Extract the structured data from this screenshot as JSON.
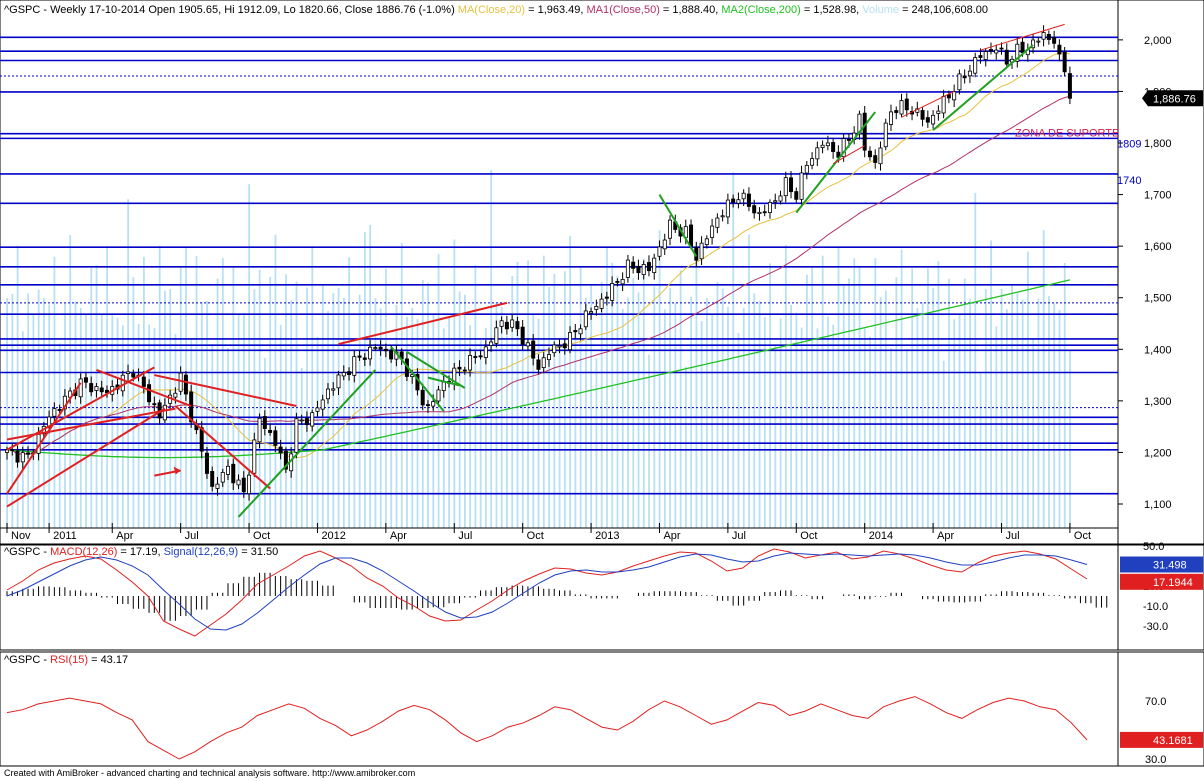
{
  "footer": "Created with AmiBroker - advanced charting and technical analysis software. http://www.amibroker.com",
  "chart_data": [
    {
      "type": "candlestick",
      "symbol": "^GSPC",
      "title_parts": [
        {
          "text": "^GSPC - Weekly 17-10-2014 Open 1905.65, Hi 1912.09, Lo 1820.66, Close 1886.76 (-1.0%) ",
          "color": "#000000"
        },
        {
          "text": "MA(Close,20)",
          "color": "#e8c040"
        },
        {
          "text": " = 1,963.49, ",
          "color": "#000000"
        },
        {
          "text": "MA1(Close,50)",
          "color": "#b0306a"
        },
        {
          "text": " = 1,888.40, ",
          "color": "#000000"
        },
        {
          "text": "MA2(Close,200)",
          "color": "#20c020"
        },
        {
          "text": " = 1,528.98, ",
          "color": "#000000"
        },
        {
          "text": "Volume",
          "color": "#b8e0f0"
        },
        {
          "text": " = 248,106,608.00",
          "color": "#000000"
        }
      ],
      "y_ticks": [
        "1,100",
        "1,200",
        "1,300",
        "1,400",
        "1,500",
        "1,600",
        "1,700",
        "1,800",
        "1,900",
        "2,000"
      ],
      "x_ticks": [
        {
          "label": "Nov",
          "idx": 0
        },
        {
          "label": "2011",
          "idx": 8
        },
        {
          "label": "Apr",
          "idx": 20
        },
        {
          "label": "Jul",
          "idx": 33
        },
        {
          "label": "Oct",
          "idx": 46
        },
        {
          "label": "2012",
          "idx": 59
        },
        {
          "label": "Apr",
          "idx": 72
        },
        {
          "label": "Jul",
          "idx": 85
        },
        {
          "label": "Oct",
          "idx": 98
        },
        {
          "label": "2013",
          "idx": 111
        },
        {
          "label": "Apr",
          "idx": 124
        },
        {
          "label": "Jul",
          "idx": 137
        },
        {
          "label": "Oct",
          "idx": 150
        },
        {
          "label": "2014",
          "idx": 163
        },
        {
          "label": "Apr",
          "idx": 176
        },
        {
          "label": "Jul",
          "idx": 189
        },
        {
          "label": "Oct",
          "idx": 202
        }
      ],
      "anchors": [
        [
          0,
          1200
        ],
        [
          4,
          1190
        ],
        [
          8,
          1270
        ],
        [
          14,
          1335
        ],
        [
          19,
          1315
        ],
        [
          24,
          1360
        ],
        [
          29,
          1270
        ],
        [
          33,
          1345
        ],
        [
          37,
          1200
        ],
        [
          39,
          1130
        ],
        [
          42,
          1170
        ],
        [
          45,
          1120
        ],
        [
          48,
          1265
        ],
        [
          51,
          1220
        ],
        [
          53,
          1165
        ],
        [
          55,
          1255
        ],
        [
          58,
          1270
        ],
        [
          61,
          1320
        ],
        [
          66,
          1375
        ],
        [
          70,
          1405
        ],
        [
          75,
          1380
        ],
        [
          79,
          1300
        ],
        [
          80,
          1285
        ],
        [
          83,
          1335
        ],
        [
          87,
          1370
        ],
        [
          91,
          1400
        ],
        [
          94,
          1455
        ],
        [
          97,
          1440
        ],
        [
          101,
          1365
        ],
        [
          103,
          1395
        ],
        [
          107,
          1420
        ],
        [
          110,
          1465
        ],
        [
          114,
          1505
        ],
        [
          118,
          1560
        ],
        [
          122,
          1555
        ],
        [
          126,
          1640
        ],
        [
          129,
          1625
        ],
        [
          131,
          1580
        ],
        [
          135,
          1655
        ],
        [
          139,
          1700
        ],
        [
          143,
          1660
        ],
        [
          146,
          1690
        ],
        [
          148,
          1720
        ],
        [
          150,
          1700
        ],
        [
          152,
          1760
        ],
        [
          155,
          1800
        ],
        [
          158,
          1780
        ],
        [
          160,
          1810
        ],
        [
          162,
          1845
        ],
        [
          163,
          1790
        ],
        [
          165,
          1760
        ],
        [
          168,
          1865
        ],
        [
          171,
          1870
        ],
        [
          174,
          1850
        ],
        [
          175,
          1840
        ],
        [
          178,
          1880
        ],
        [
          181,
          1920
        ],
        [
          185,
          1970
        ],
        [
          188,
          1985
        ],
        [
          190,
          1960
        ],
        [
          192,
          1978
        ],
        [
          194,
          1985
        ],
        [
          197,
          2010
        ],
        [
          199,
          1998
        ],
        [
          200,
          1960
        ],
        [
          201,
          1946
        ],
        [
          202,
          1886
        ]
      ],
      "last_close": 1886.76,
      "hlines": [
        1120,
        1205,
        1218,
        1255,
        1268,
        1355,
        1398,
        1408,
        1420,
        1468,
        1525,
        1560,
        1598,
        1683,
        1740,
        1809,
        1818,
        1899,
        1960,
        1978,
        2005
      ],
      "dotted_hlines": [
        1490,
        1930,
        1287
      ],
      "level_labels": [
        {
          "text": "1809",
          "value": 1809
        },
        {
          "text": "1740",
          "value": 1740
        }
      ],
      "annotation": {
        "text": "ZONA DE SUPORTE",
        "color": "#d02050"
      },
      "price_tag": "1,886.76"
    },
    {
      "type": "line",
      "panel": "MACD",
      "title_parts": [
        {
          "text": "^GSPC - ",
          "color": "#000000"
        },
        {
          "text": "MACD(12,26)",
          "color": "#e02020"
        },
        {
          "text": " = 17.19, ",
          "color": "#000000"
        },
        {
          "text": "Signal(12,26,9)",
          "color": "#2040c0"
        },
        {
          "text": " = 31.50",
          "color": "#000000"
        }
      ],
      "y_ticks": [
        "50.0",
        "30.0",
        "10.0",
        "-10.0",
        "-30.0"
      ],
      "series": [
        {
          "name": "MACD(12,26)",
          "color": "#e02020",
          "values": [
            6,
            15,
            26,
            33,
            37,
            40,
            37,
            26,
            14,
            0,
            -25,
            -33,
            -40,
            -29,
            -18,
            -4,
            12,
            21,
            30,
            40,
            45,
            38,
            30,
            18,
            10,
            -2,
            -10,
            -20,
            -25,
            -24,
            -14,
            -5,
            6,
            15,
            22,
            28,
            27,
            23,
            21,
            24,
            30,
            35,
            40,
            44,
            43,
            35,
            25,
            28,
            40,
            47,
            44,
            38,
            41,
            44,
            37,
            39,
            45,
            42,
            37,
            31,
            26,
            24,
            33,
            40,
            43,
            45,
            42,
            37,
            27,
            17
          ]
        },
        {
          "name": "Signal(12,26,9)",
          "color": "#2040c0",
          "values": [
            0,
            6,
            14,
            22,
            30,
            36,
            39,
            36,
            30,
            21,
            6,
            -8,
            -23,
            -33,
            -34,
            -28,
            -17,
            -4,
            9,
            21,
            32,
            38,
            38,
            33,
            25,
            15,
            5,
            -6,
            -16,
            -22,
            -21,
            -16,
            -7,
            3,
            13,
            21,
            25,
            26,
            24,
            24,
            26,
            29,
            34,
            39,
            42,
            41,
            37,
            34,
            35,
            40,
            43,
            42,
            41,
            42,
            41,
            40,
            41,
            42,
            41,
            38,
            34,
            31,
            31,
            34,
            38,
            41,
            41,
            40,
            36,
            31.5
          ]
        }
      ],
      "macd_tag": "17.1944",
      "signal_tag": "31.498"
    },
    {
      "type": "line",
      "panel": "RSI",
      "title_parts": [
        {
          "text": "^GSPC - ",
          "color": "#000000"
        },
        {
          "text": "RSI(15)",
          "color": "#e02020"
        },
        {
          "text": " = 43.17",
          "color": "#000000"
        }
      ],
      "y_ticks": [
        "70.0",
        "30.0"
      ],
      "series": [
        {
          "name": "RSI(15)",
          "color": "#e02020",
          "values": [
            62,
            64,
            68,
            70,
            72,
            70,
            68,
            62,
            57,
            42,
            36,
            30,
            35,
            42,
            48,
            52,
            60,
            64,
            68,
            65,
            58,
            53,
            46,
            50,
            56,
            63,
            67,
            64,
            57,
            48,
            42,
            46,
            52,
            55,
            60,
            66,
            64,
            58,
            52,
            50,
            56,
            64,
            70,
            66,
            60,
            54,
            57,
            63,
            69,
            67,
            60,
            63,
            68,
            64,
            60,
            58,
            66,
            70,
            73,
            68,
            62,
            58,
            64,
            69,
            72,
            70,
            66,
            64,
            55,
            43.17
          ]
        }
      ],
      "rsi_tag": "43.1681"
    }
  ]
}
